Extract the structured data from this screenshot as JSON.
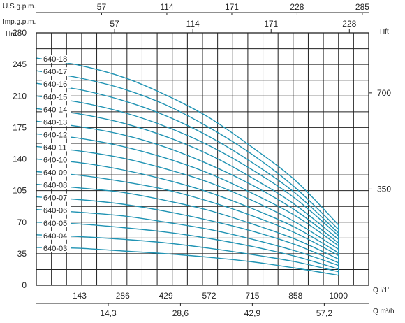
{
  "chart_data": {
    "type": "line",
    "title": "",
    "units": {
      "left": "Hm",
      "right": "Hft",
      "top1": "U.S.g.p.m.",
      "top2": "Imp.g.p.m.",
      "bottom1": "Q l/1'",
      "bottom2": "Q m³/h"
    },
    "ylim": [
      0,
      280
    ],
    "xlim": [
      0,
      1100
    ],
    "y_ticks": [
      "0",
      "35",
      "70",
      "105",
      "140",
      "175",
      "210",
      "245",
      "280"
    ],
    "right_ticks": [
      {
        "label": "350",
        "value": 106.7
      },
      {
        "label": "700",
        "value": 213.4
      }
    ],
    "bottom1_ticks": [
      {
        "label": "143",
        "value": 143
      },
      {
        "label": "286",
        "value": 286
      },
      {
        "label": "429",
        "value": 429
      },
      {
        "label": "572",
        "value": 572
      },
      {
        "label": "715",
        "value": 715
      },
      {
        "label": "858",
        "value": 858
      },
      {
        "label": "1000",
        "value": 1000
      }
    ],
    "bottom2_ticks": [
      {
        "label": "14,3",
        "value": 238
      },
      {
        "label": "28,6",
        "value": 477
      },
      {
        "label": "42,9",
        "value": 715
      },
      {
        "label": "57,2",
        "value": 953
      }
    ],
    "top1_ticks": [
      {
        "label": "57",
        "value": 216
      },
      {
        "label": "114",
        "value": 432
      },
      {
        "label": "171",
        "value": 647
      },
      {
        "label": "228",
        "value": 863
      },
      {
        "label": "285",
        "value": 1079
      }
    ],
    "top2_ticks": [
      {
        "label": "57",
        "value": 259
      },
      {
        "label": "114",
        "value": 518
      },
      {
        "label": "171",
        "value": 777
      },
      {
        "label": "228",
        "value": 1036
      }
    ],
    "x": [
      0,
      143,
      286,
      429,
      572,
      715,
      858,
      1000
    ],
    "series": [
      {
        "name": "640-18",
        "values": [
          252,
          244,
          231,
          211,
          186,
          153,
          116,
          67
        ]
      },
      {
        "name": "640-17",
        "values": [
          238,
          230,
          218,
          200,
          175,
          145,
          108,
          62
        ]
      },
      {
        "name": "640-16",
        "values": [
          224,
          217,
          205,
          188,
          165,
          136,
          102,
          58
        ]
      },
      {
        "name": "640-15",
        "values": [
          210,
          203,
          192,
          176,
          155,
          128,
          96,
          55
        ]
      },
      {
        "name": "640-14",
        "values": [
          196,
          190,
          180,
          165,
          145,
          119,
          89,
          51
        ]
      },
      {
        "name": "640-13",
        "values": [
          182,
          176,
          167,
          153,
          134,
          111,
          83,
          47
        ]
      },
      {
        "name": "640-12",
        "values": [
          168,
          163,
          154,
          141,
          124,
          102,
          77,
          44
        ]
      },
      {
        "name": "640-11",
        "values": [
          154,
          149,
          141,
          129,
          114,
          94,
          70,
          40
        ]
      },
      {
        "name": "640-10",
        "values": [
          140,
          136,
          128,
          117,
          103,
          85,
          64,
          36
        ]
      },
      {
        "name": "640-09",
        "values": [
          126,
          122,
          115,
          106,
          93,
          77,
          58,
          33
        ]
      },
      {
        "name": "640-08",
        "values": [
          112,
          108,
          103,
          94,
          83,
          68,
          51,
          29
        ]
      },
      {
        "name": "640-07",
        "values": [
          98,
          95,
          90,
          82,
          72,
          60,
          45,
          25
        ]
      },
      {
        "name": "640-06",
        "values": [
          84,
          81,
          77,
          70,
          62,
          51,
          38,
          22
        ]
      },
      {
        "name": "640-05",
        "values": [
          70,
          68,
          64,
          59,
          52,
          43,
          32,
          18
        ]
      },
      {
        "name": "640-04",
        "values": [
          56,
          54,
          51,
          47,
          41,
          34,
          26,
          15
        ]
      },
      {
        "name": "640-03",
        "values": [
          42,
          41,
          38,
          35,
          31,
          26,
          19,
          11
        ]
      }
    ],
    "grid": true,
    "legend": "inline-left"
  },
  "colors": {
    "curve": "#1f93b3",
    "grid": "#222222",
    "text": "#222222"
  }
}
